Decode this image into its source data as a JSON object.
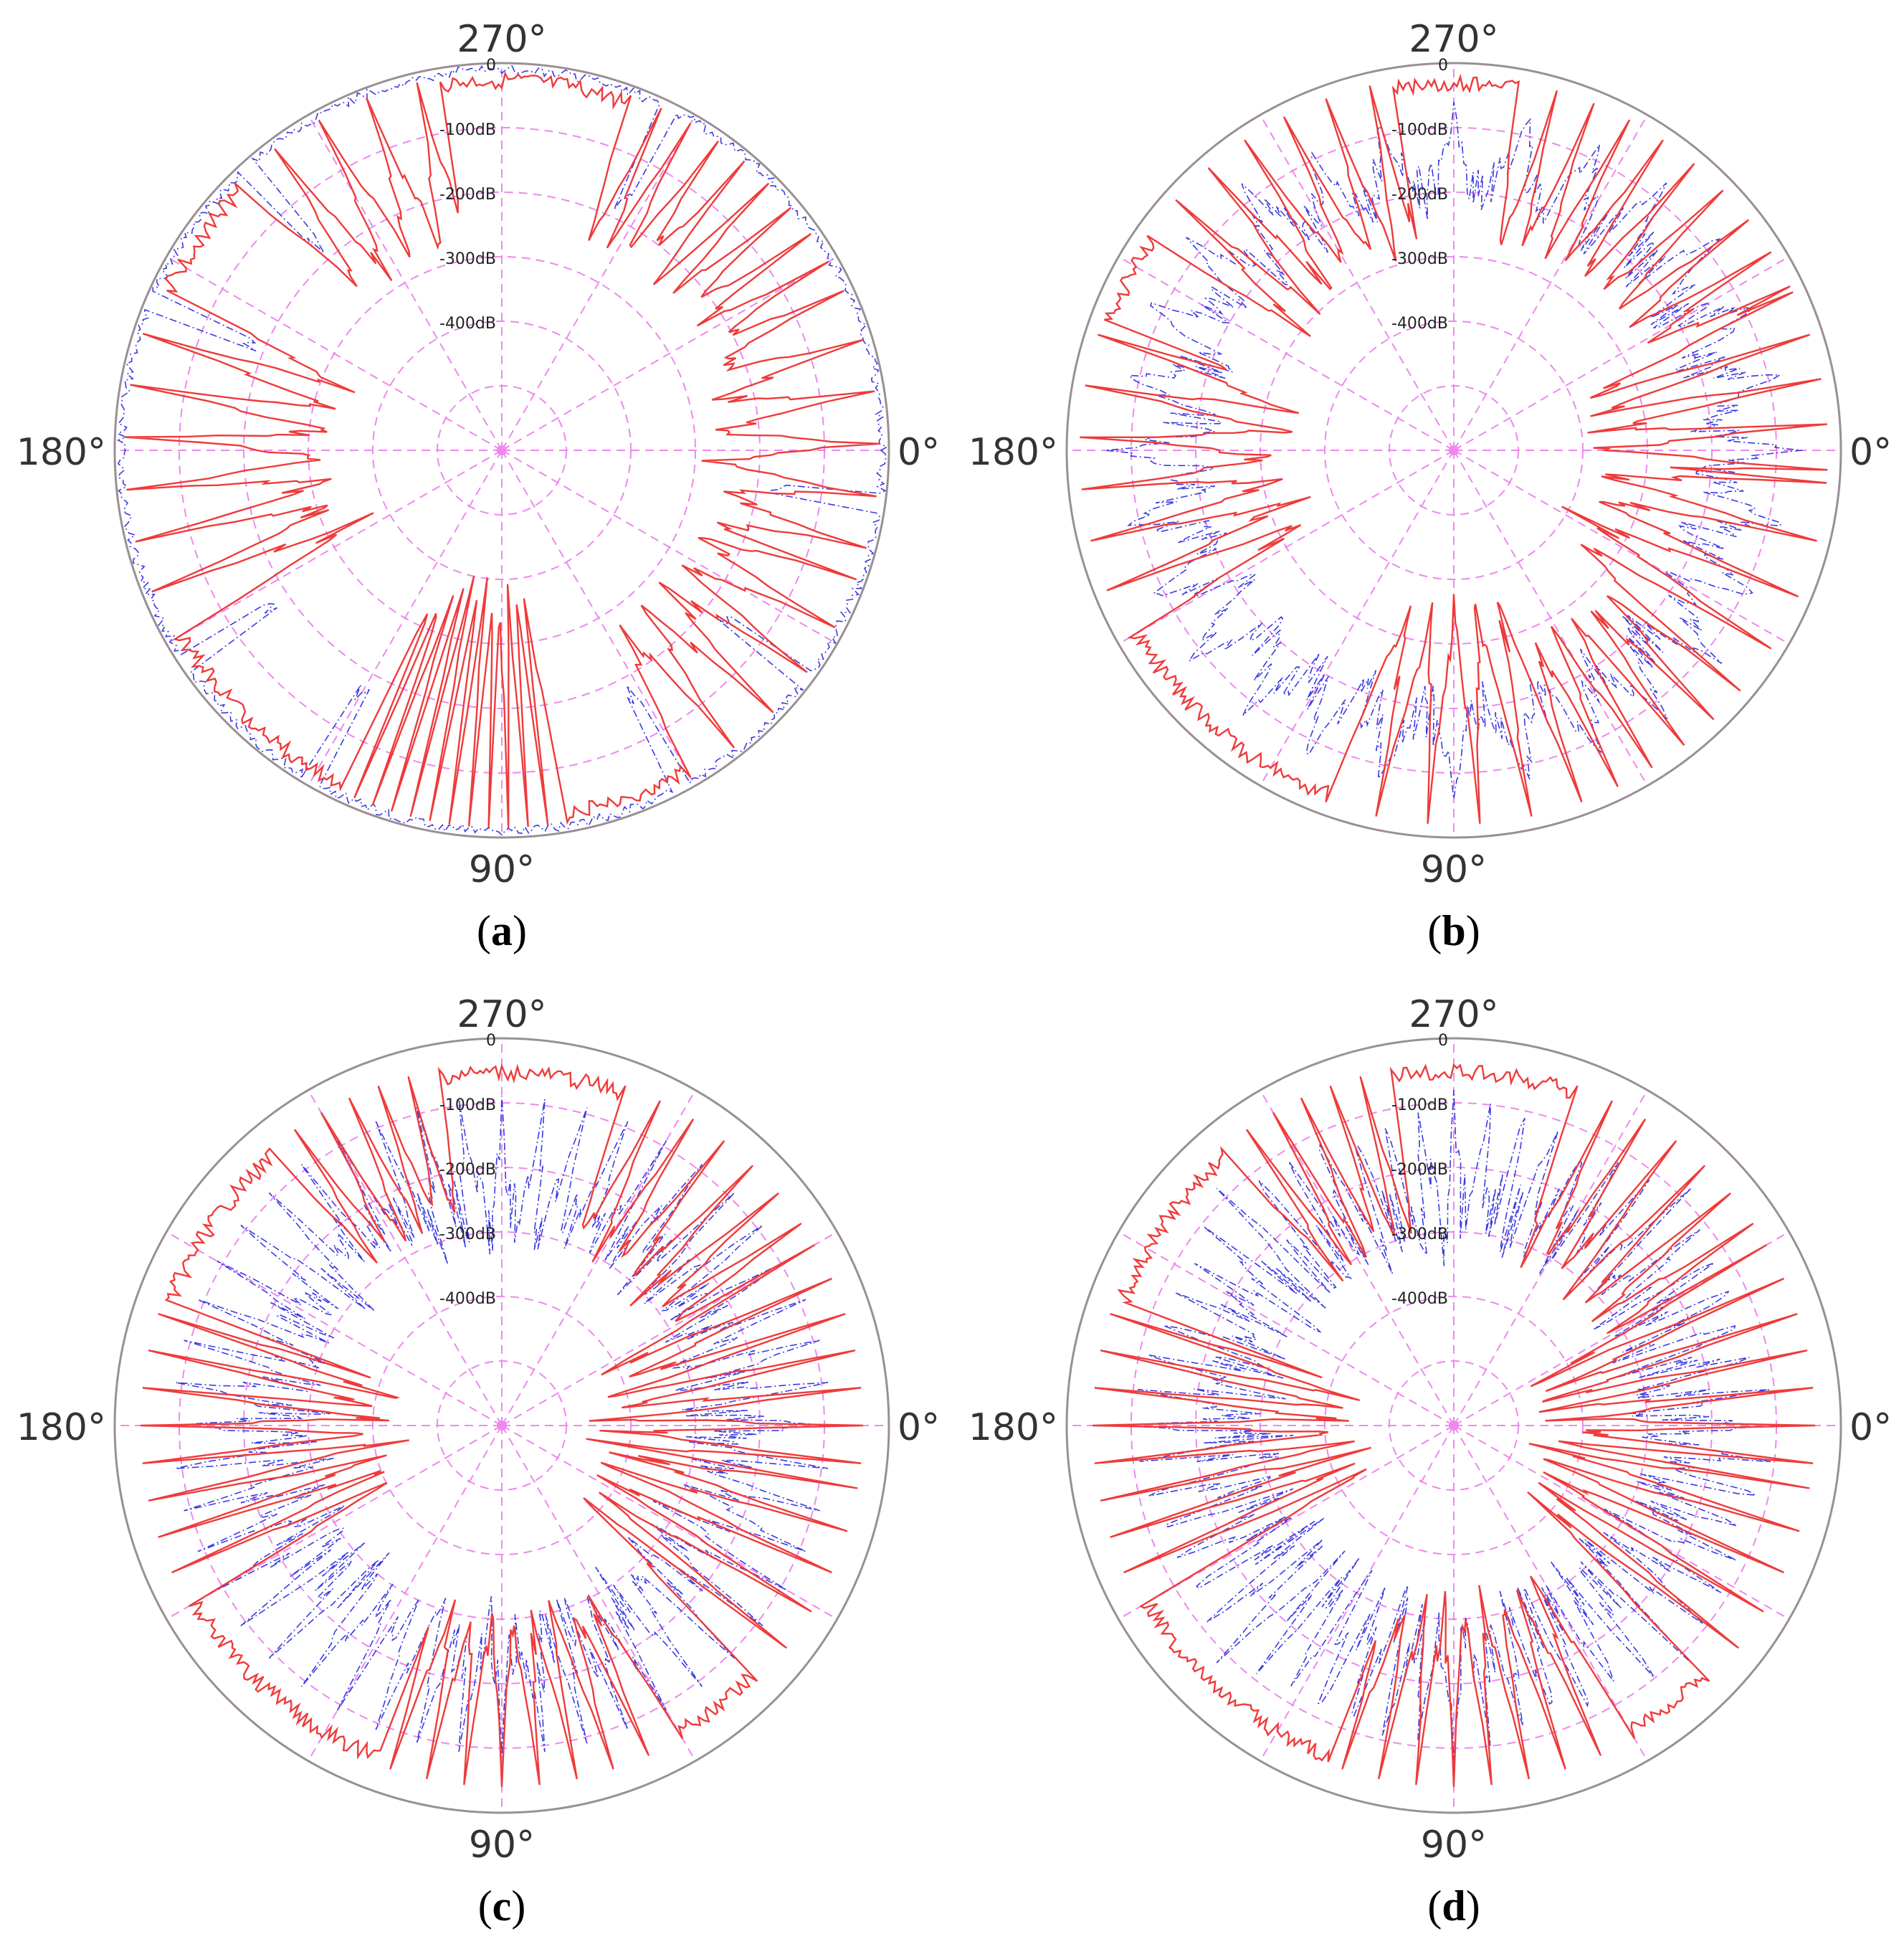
{
  "colors": {
    "grid": "#ee88ee",
    "outer_circle": "#9a8f94",
    "blue_series": "#3b3be0",
    "red_series": "#ee3b3b"
  },
  "chart_data": [
    {
      "type": "polar-line",
      "caption": "(a)",
      "angle_labels": [
        "0°",
        "90°",
        "180°",
        "270°"
      ],
      "radial_labels": [
        "0",
        "-100dB",
        "-200dB",
        "-300dB",
        "-400dB"
      ],
      "radial_range_dB": [
        -600,
        0
      ],
      "series": [
        {
          "color": "blue",
          "style": "dash-dot",
          "generator": {
            "base": -10,
            "amp": 15,
            "lobes": 0,
            "seed": 1,
            "nulls": [
              8,
              37,
              62,
              120,
              146,
              203,
              228,
              296
            ],
            "null_level": -150
          }
        },
        {
          "color": "red",
          "style": "solid",
          "generator": {
            "base": -15,
            "spikes": [
              [
                20,
                60,
                8,
                -290
              ],
              [
                80,
                115,
                3,
                -410
              ],
              [
                150,
                205,
                8,
                -380
              ],
              [
                225,
                260,
                8,
                -290
              ],
              [
                290,
                335,
                5,
                -260
              ],
              [
                335,
                380,
                8,
                -290
              ]
            ],
            "seed": 2
          }
        }
      ]
    },
    {
      "type": "polar-line",
      "caption": "(b)",
      "angle_labels": [
        "0°",
        "90°",
        "180°",
        "270°"
      ],
      "radial_labels": [
        "0",
        "-100dB",
        "-200dB",
        "-300dB",
        "-400dB"
      ],
      "radial_range_dB": [
        -600,
        0
      ],
      "series": [
        {
          "color": "blue",
          "style": "dash-dot",
          "generator": {
            "base": -60,
            "amp": 160,
            "lobes": 28,
            "seed": 3,
            "nulls": [],
            "null_level": -300
          }
        },
        {
          "color": "red",
          "style": "solid",
          "generator": {
            "base": -20,
            "spikes": [
              [
                5,
                40,
                9,
                -420
              ],
              [
                40,
                70,
                6,
                -300
              ],
              [
                70,
                110,
                8,
                -380
              ],
              [
                150,
                200,
                8,
                -380
              ],
              [
                215,
                260,
                7,
                -320
              ],
              [
                280,
                335,
                6,
                -300
              ],
              [
                335,
                365,
                7,
                -420
              ]
            ],
            "seed": 4
          }
        }
      ]
    },
    {
      "type": "polar-line",
      "caption": "(c)",
      "angle_labels": [
        "0°",
        "90°",
        "180°",
        "270°"
      ],
      "radial_labels": [
        "0",
        "-100dB",
        "-200dB",
        "-300dB",
        "-400dB"
      ],
      "radial_range_dB": [
        -600,
        0
      ],
      "series": [
        {
          "color": "blue",
          "style": "dash-dot",
          "generator": {
            "base": -90,
            "amp": 220,
            "lobes": 48,
            "seed": 5,
            "nulls": [],
            "null_level": -300
          }
        },
        {
          "color": "red",
          "style": "solid",
          "generator": {
            "base": -40,
            "spikes": [
              [
                10,
                45,
                7,
                -460
              ],
              [
                60,
                110,
                6,
                -330
              ],
              [
                150,
                200,
                6,
                -470
              ],
              [
                230,
                260,
                5,
                -300
              ],
              [
                290,
                330,
                6,
                -330
              ],
              [
                330,
                370,
                6,
                -470
              ]
            ],
            "seed": 6
          }
        }
      ]
    },
    {
      "type": "polar-line",
      "caption": "(d)",
      "angle_labels": [
        "0°",
        "90°",
        "180°",
        "270°"
      ],
      "radial_labels": [
        "0",
        "-100dB",
        "-200dB",
        "-300dB",
        "-400dB"
      ],
      "radial_range_dB": [
        -600,
        0
      ],
      "series": [
        {
          "color": "blue",
          "style": "dash-dot",
          "generator": {
            "base": -80,
            "amp": 240,
            "lobes": 56,
            "seed": 7,
            "nulls": [],
            "null_level": -300
          }
        },
        {
          "color": "red",
          "style": "solid",
          "generator": {
            "base": -40,
            "spikes": [
              [
                10,
                45,
                7,
                -490
              ],
              [
                60,
                110,
                6,
                -350
              ],
              [
                150,
                200,
                6,
                -490
              ],
              [
                230,
                260,
                5,
                -320
              ],
              [
                290,
                330,
                6,
                -350
              ],
              [
                330,
                370,
                6,
                -490
              ]
            ],
            "seed": 8
          }
        }
      ]
    }
  ]
}
